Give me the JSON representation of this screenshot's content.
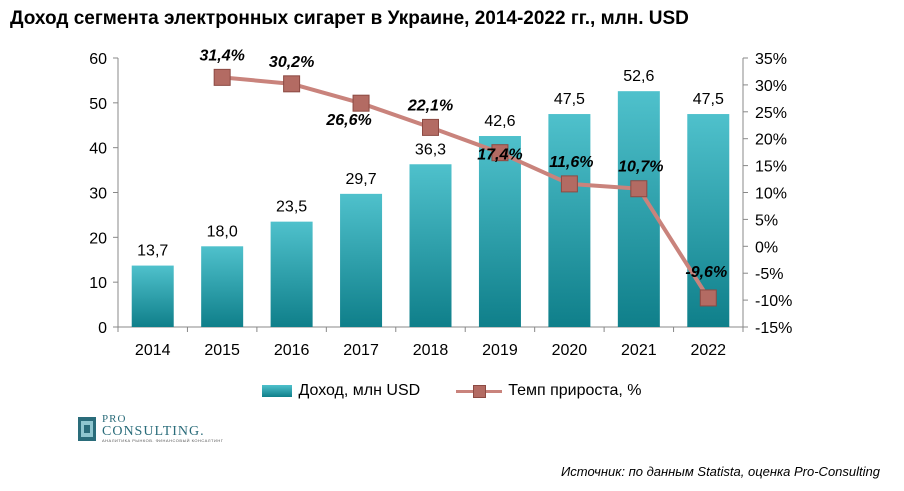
{
  "title": "Доход сегмента электронных сигарет в Украине, 2014-2022 гг., млн. USD",
  "legend": {
    "bars": "Доход, млн USD",
    "line": "Темп прироста, %"
  },
  "source": "Источник: по данным Statista, оценка Pro-Consulting",
  "logo": {
    "pro": "PRO",
    "name": "CONSULTING.",
    "tagline": "АНАЛИТИКА РЫНКОВ. ФИНАНСОВЫЙ КОНСАЛТИНГ"
  },
  "colors": {
    "bar_top": "#4fc1cc",
    "bar_bottom": "#0f7f8a",
    "line": "#c9837c",
    "marker": "#b36b63"
  },
  "chart_data": {
    "type": "bar",
    "categories": [
      "2014",
      "2015",
      "2016",
      "2017",
      "2018",
      "2019",
      "2020",
      "2021",
      "2022"
    ],
    "series": [
      {
        "name": "Доход, млн USD",
        "type": "bar",
        "axis": "left",
        "values": [
          13.7,
          18.0,
          23.5,
          29.7,
          36.3,
          42.6,
          47.5,
          52.6,
          47.5
        ],
        "labels": [
          "13,7",
          "18,0",
          "23,5",
          "29,7",
          "36,3",
          "42,6",
          "47,5",
          "52,6",
          "47,5"
        ]
      },
      {
        "name": "Темп прироста, %",
        "type": "line",
        "axis": "right",
        "values": [
          null,
          31.4,
          30.2,
          26.6,
          22.1,
          17.4,
          11.6,
          10.7,
          -9.6
        ],
        "labels": [
          "",
          "31,4%",
          "30,2%",
          "26,6%",
          "22,1%",
          "17,4%",
          "11,6%",
          "10,7%",
          "-9,6%"
        ]
      }
    ],
    "y_left": {
      "min": 0,
      "max": 60,
      "ticks": [
        "0",
        "10",
        "20",
        "30",
        "40",
        "50",
        "60"
      ]
    },
    "y_right": {
      "min": -15,
      "max": 35,
      "ticks": [
        "-15%",
        "-10%",
        "-5%",
        "0%",
        "5%",
        "10%",
        "15%",
        "20%",
        "25%",
        "30%",
        "35%"
      ]
    },
    "grid": false,
    "legend_position": "bottom"
  }
}
